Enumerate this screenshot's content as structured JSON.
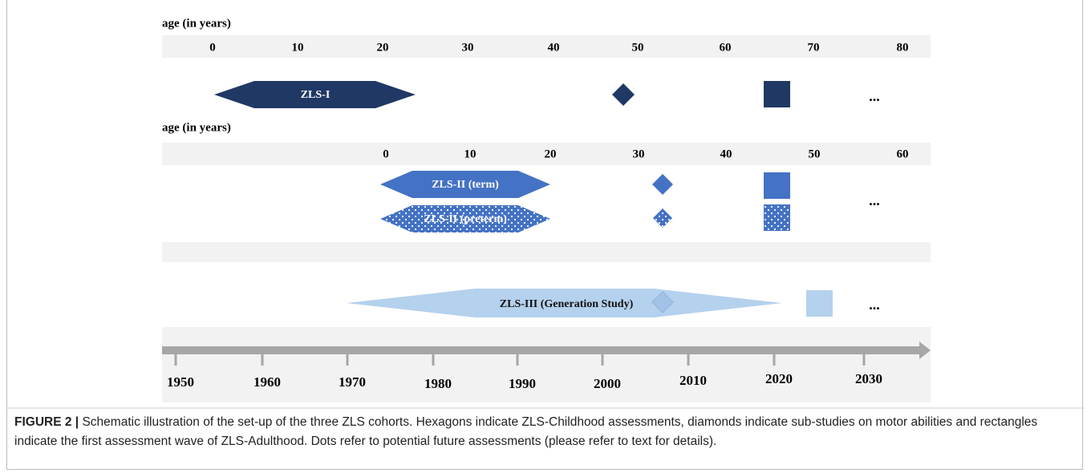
{
  "age_axes": [
    {
      "label": "age (in years)",
      "ticks": [
        0,
        10,
        20,
        30,
        40,
        50,
        60,
        70,
        80
      ]
    },
    {
      "label": "age (in years)",
      "ticks": [
        0,
        10,
        20,
        30,
        40,
        50,
        60
      ]
    }
  ],
  "cohorts": [
    {
      "label": "ZLS-I"
    },
    {
      "label": "ZLS-II (term)"
    },
    {
      "label": "ZLS-II (preterm)"
    },
    {
      "label": "ZLS-III (Generation Study)"
    }
  ],
  "ellipsis": "...",
  "years": [
    1950,
    1960,
    1970,
    1980,
    1990,
    2000,
    2010,
    2020,
    2030
  ],
  "caption": {
    "label": "FIGURE 2 |",
    "text": "Schematic illustration of the set-up of the three ZLS cohorts. Hexagons indicate ZLS-Childhood assessments, diamonds indicate sub-studies on motor abilities and rectangles indicate the first assessment wave of ZLS-Adulthood. Dots refer to potential future assessments (please refer to text for details)."
  }
}
